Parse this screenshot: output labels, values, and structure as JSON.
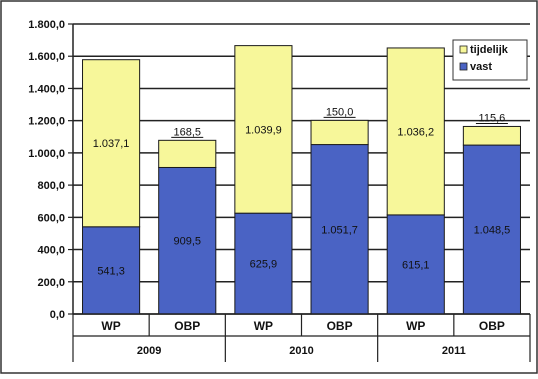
{
  "chart_data": {
    "type": "bar",
    "stacked": true,
    "title": "",
    "xlabel": "",
    "ylabel": "",
    "ylim": [
      0,
      1800
    ],
    "yticks": [
      "0,0",
      "200,0",
      "400,0",
      "600,0",
      "800,0",
      "1.000,0",
      "1.200,0",
      "1.400,0",
      "1.600,0",
      "1.800,0"
    ],
    "grid": true,
    "legend_position": "top-right",
    "groups": [
      "2009",
      "2010",
      "2011"
    ],
    "categories": [
      "WP",
      "OBP",
      "WP",
      "OBP",
      "WP",
      "OBP"
    ],
    "series": [
      {
        "name": "vast",
        "color": "#4a63c4",
        "values": [
          541.3,
          909.5,
          625.9,
          1051.7,
          615.1,
          1048.5
        ],
        "labels": [
          "541,3",
          "909,5",
          "625,9",
          "1.051,7",
          "615,1",
          "1.048,5"
        ]
      },
      {
        "name": "tijdelijk",
        "color": "#f7f79a",
        "values": [
          1037.1,
          168.5,
          1039.9,
          150.0,
          1036.2,
          115.6
        ],
        "labels": [
          "1.037,1",
          "168,5",
          "1.039,9",
          "150,0",
          "1.036,2",
          "115,6"
        ]
      }
    ]
  }
}
